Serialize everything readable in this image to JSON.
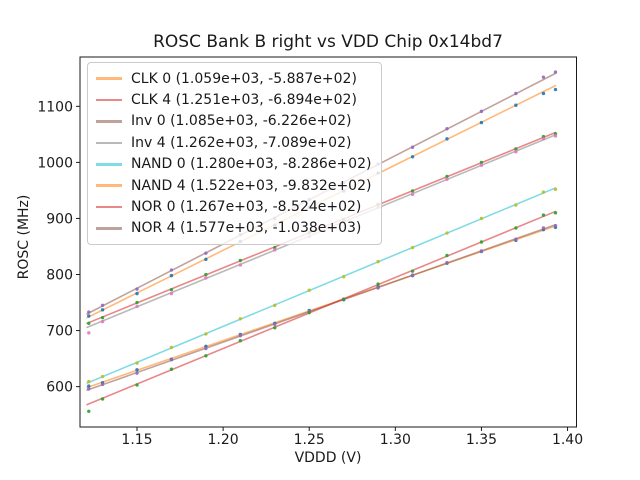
{
  "figure": {
    "background": "#ffffff"
  },
  "chart_data": {
    "type": "scatter",
    "title": "ROSC Bank B right vs VDD Chip 0x14bd7",
    "xlabel": "VDDD (V)",
    "ylabel": "ROSC (MHz)",
    "xlim": [
      1.1169,
      1.4052
    ],
    "ylim": [
      528,
      1188
    ],
    "grid": false,
    "legend_position": "upper left",
    "x_ticks": {
      "values": [
        1.15,
        1.2,
        1.25,
        1.3,
        1.35,
        1.4
      ],
      "labels": [
        "1.15",
        "1.20",
        "1.25",
        "1.30",
        "1.35",
        "1.40"
      ]
    },
    "y_ticks": {
      "values": [
        600,
        700,
        800,
        900,
        1000,
        1100
      ],
      "labels": [
        "600",
        "700",
        "800",
        "900",
        "1000",
        "1100"
      ]
    },
    "fit_line_x_range": [
      1.121,
      1.393
    ],
    "x": [
      1.122,
      1.13,
      1.15,
      1.17,
      1.19,
      1.21,
      1.23,
      1.25,
      1.27,
      1.29,
      1.31,
      1.33,
      1.35,
      1.37,
      1.386,
      1.393
    ],
    "series": [
      {
        "name": "CLK 0",
        "legend_label": "CLK 0 (1.059e+03, -5.887e+02)",
        "slope": 1059,
        "intercept": -588.7,
        "line_color": "#ff7f0e",
        "marker_color": "#1f77b4",
        "values": [
          601,
          607,
          630,
          649,
          672,
          693,
          713,
          736,
          755,
          778,
          798,
          820,
          841,
          861,
          880,
          884
        ]
      },
      {
        "name": "CLK 4",
        "legend_label": "CLK 4 (1.251e+03, -6.894e+02)",
        "slope": 1251,
        "intercept": -689.4,
        "line_color": "#d62728",
        "marker_color": "#2ca02c",
        "values": [
          713,
          723,
          750,
          773,
          800,
          825,
          848,
          875,
          898,
          925,
          949,
          975,
          1000,
          1024,
          1046,
          1051
        ]
      },
      {
        "name": "Inv 0",
        "legend_label": "Inv 0 (1.085e+03, -6.226e+02)",
        "slope": 1085,
        "intercept": -622.6,
        "line_color": "#8c564b",
        "marker_color": "#9467bd",
        "values": [
          596,
          604,
          624,
          648,
          668,
          691,
          711,
          734,
          756,
          776,
          799,
          821,
          842,
          863,
          883,
          887
        ]
      },
      {
        "name": "Inv 4",
        "legend_label": "Inv 4 (1.262e+03, -7.089e+02)",
        "slope": 1262,
        "intercept": -708.9,
        "line_color": "#7f7f7f",
        "marker_color": "#e377c2",
        "values": [
          696,
          716,
          743,
          766,
          794,
          817,
          844,
          868,
          894,
          920,
          943,
          970,
          995,
          1019,
          1042,
          1047
        ]
      },
      {
        "name": "NAND 0",
        "legend_label": "NAND 0 (1.280e+03, -8.286e+02)",
        "slope": 1280,
        "intercept": -828.6,
        "line_color": "#17becf",
        "marker_color": "#bcbd22",
        "values": [
          609,
          618,
          642,
          670,
          694,
          721,
          745,
          772,
          796,
          823,
          848,
          874,
          900,
          924,
          947,
          952
        ]
      },
      {
        "name": "NAND 4",
        "legend_label": "NAND 4 (1.522e+03, -9.832e+02)",
        "slope": 1522,
        "intercept": -983.2,
        "line_color": "#ff7f0e",
        "marker_color": "#1f77b4",
        "values": [
          726,
          737,
          766,
          798,
          827,
          859,
          888,
          920,
          949,
          981,
          1010,
          1042,
          1071,
          1102,
          1123,
          1130
        ]
      },
      {
        "name": "NOR 0",
        "legend_label": "NOR 0 (1.267e+03, -8.524e+02)",
        "slope": 1267,
        "intercept": -852.4,
        "line_color": "#d62728",
        "marker_color": "#2ca02c",
        "values": [
          556,
          578,
          603,
          631,
          655,
          682,
          705,
          732,
          756,
          783,
          806,
          834,
          858,
          883,
          906,
          910
        ]
      },
      {
        "name": "NOR 4",
        "legend_label": "NOR 4 (1.577e+03, -1.038e+03)",
        "slope": 1577,
        "intercept": -1038,
        "line_color": "#8c564b",
        "marker_color": "#9467bd",
        "values": [
          733,
          745,
          774,
          808,
          838,
          871,
          900,
          934,
          964,
          997,
          1027,
          1060,
          1091,
          1123,
          1152,
          1161
        ]
      }
    ]
  }
}
